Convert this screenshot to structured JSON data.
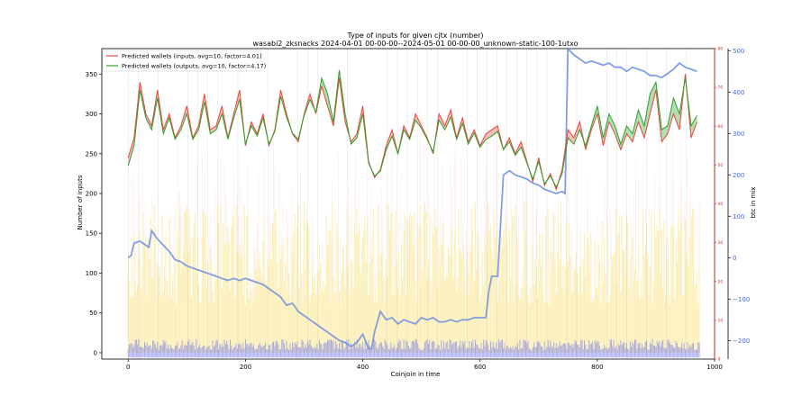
{
  "chart_data": {
    "type": "line",
    "title": "Type of inputs for given cjtx (number)",
    "subtitle": "wasabi2_zksnacks 2024-04-01 00-00-00--2024-05-01 00-00-00_unknown-static-100-1utxo",
    "xlabel": "Coinjoin in time",
    "ylabel": "Number of inputs",
    "y2label": "btc in mix",
    "xlim": [
      -45,
      1000
    ],
    "ylim": [
      -8,
      382
    ],
    "y2lim": [
      -245,
      505
    ],
    "y3lim": [
      0,
      80
    ],
    "xticks": [
      "0",
      "200",
      "400",
      "600",
      "800",
      "1000"
    ],
    "yticks": [
      "0",
      "50",
      "100",
      "150",
      "200",
      "250",
      "300",
      "350"
    ],
    "y2ticks": [
      "−200",
      "−100",
      "0",
      "100",
      "200",
      "300",
      "400",
      "500"
    ],
    "y3ticks": [
      "0",
      "10",
      "20",
      "30",
      "40",
      "50",
      "60",
      "70",
      "80"
    ],
    "legend_position": "upper left",
    "series": [
      {
        "name": "Predicted wallets (inputs, avg=10, factor=4.01)",
        "color": "#e8453c",
        "x": [
          0,
          10,
          20,
          30,
          40,
          50,
          60,
          70,
          80,
          90,
          100,
          110,
          120,
          130,
          140,
          150,
          160,
          170,
          180,
          190,
          200,
          210,
          220,
          230,
          240,
          250,
          260,
          270,
          280,
          290,
          300,
          310,
          320,
          330,
          340,
          350,
          360,
          370,
          380,
          390,
          400,
          410,
          420,
          430,
          440,
          450,
          460,
          470,
          480,
          490,
          500,
          510,
          520,
          530,
          540,
          550,
          560,
          570,
          580,
          590,
          600,
          610,
          620,
          630,
          640,
          650,
          660,
          670,
          680,
          690,
          700,
          710,
          720,
          730,
          740,
          750,
          760,
          770,
          780,
          790,
          800,
          810,
          820,
          830,
          840,
          850,
          860,
          870,
          880,
          890,
          900,
          910,
          920,
          930,
          940,
          950,
          960,
          970
        ],
        "values": [
          245,
          270,
          340,
          300,
          285,
          330,
          280,
          300,
          270,
          285,
          310,
          270,
          285,
          325,
          280,
          285,
          310,
          270,
          300,
          330,
          260,
          290,
          275,
          300,
          260,
          280,
          330,
          300,
          275,
          265,
          300,
          325,
          300,
          335,
          310,
          285,
          345,
          290,
          265,
          275,
          310,
          240,
          220,
          230,
          260,
          280,
          250,
          285,
          270,
          300,
          285,
          270,
          250,
          300,
          285,
          305,
          270,
          295,
          265,
          280,
          260,
          275,
          280,
          285,
          255,
          270,
          250,
          265,
          240,
          215,
          245,
          210,
          225,
          205,
          230,
          280,
          270,
          290,
          255,
          280,
          300,
          260,
          290,
          275,
          255,
          275,
          265,
          290,
          270,
          300,
          330,
          265,
          275,
          300,
          280,
          350,
          270,
          290
        ]
      },
      {
        "name": "Predicted wallets (outputs, avg=10, factor=4.17)",
        "color": "#2ca02c",
        "x": [
          0,
          10,
          20,
          30,
          40,
          50,
          60,
          70,
          80,
          90,
          100,
          110,
          120,
          130,
          140,
          150,
          160,
          170,
          180,
          190,
          200,
          210,
          220,
          230,
          240,
          250,
          260,
          270,
          280,
          290,
          300,
          310,
          320,
          330,
          340,
          350,
          360,
          370,
          380,
          390,
          400,
          410,
          420,
          430,
          440,
          450,
          460,
          470,
          480,
          490,
          500,
          510,
          520,
          530,
          540,
          550,
          560,
          570,
          580,
          590,
          600,
          610,
          620,
          630,
          640,
          650,
          660,
          670,
          680,
          690,
          700,
          710,
          720,
          730,
          740,
          750,
          760,
          770,
          780,
          790,
          800,
          810,
          820,
          830,
          840,
          850,
          860,
          870,
          880,
          890,
          900,
          910,
          920,
          930,
          940,
          950,
          960,
          970
        ],
        "values": [
          235,
          260,
          330,
          295,
          280,
          320,
          275,
          295,
          268,
          280,
          300,
          268,
          280,
          315,
          275,
          280,
          300,
          268,
          295,
          318,
          262,
          285,
          272,
          295,
          262,
          278,
          322,
          296,
          276,
          268,
          298,
          318,
          302,
          345,
          325,
          290,
          355,
          300,
          262,
          270,
          300,
          238,
          222,
          228,
          255,
          272,
          250,
          280,
          268,
          292,
          282,
          268,
          252,
          292,
          280,
          296,
          268,
          288,
          262,
          276,
          258,
          268,
          272,
          278,
          255,
          265,
          248,
          258,
          238,
          218,
          240,
          212,
          222,
          208,
          225,
          270,
          262,
          280,
          260,
          285,
          310,
          270,
          300,
          285,
          262,
          285,
          275,
          305,
          285,
          325,
          340,
          280,
          285,
          320,
          300,
          345,
          285,
          298
        ]
      },
      {
        "name": "btc in mix",
        "color": "#6c8ee0",
        "axis": "y2",
        "x": [
          0,
          5,
          10,
          20,
          30,
          35,
          40,
          50,
          60,
          70,
          80,
          90,
          100,
          110,
          120,
          130,
          140,
          150,
          160,
          170,
          180,
          190,
          200,
          210,
          220,
          230,
          240,
          250,
          260,
          270,
          280,
          290,
          300,
          310,
          320,
          330,
          340,
          350,
          360,
          370,
          380,
          390,
          400,
          410,
          415,
          420,
          430,
          440,
          450,
          460,
          470,
          480,
          490,
          500,
          510,
          520,
          530,
          540,
          550,
          560,
          570,
          580,
          590,
          600,
          610,
          615,
          620,
          625,
          630,
          640,
          650,
          660,
          670,
          680,
          690,
          700,
          710,
          720,
          730,
          740,
          745,
          750,
          760,
          770,
          780,
          790,
          800,
          810,
          820,
          830,
          840,
          850,
          860,
          870,
          880,
          890,
          900,
          910,
          920,
          930,
          940,
          950,
          960,
          970
        ],
        "values": [
          0,
          5,
          35,
          40,
          30,
          25,
          65,
          45,
          30,
          15,
          -5,
          -10,
          -20,
          -25,
          -30,
          -35,
          -40,
          -45,
          -50,
          -55,
          -50,
          -55,
          -50,
          -55,
          -60,
          -65,
          -75,
          -85,
          -95,
          -115,
          -110,
          -130,
          -140,
          -150,
          -160,
          -170,
          -180,
          -190,
          -200,
          -205,
          -215,
          -205,
          -185,
          -220,
          -220,
          -180,
          -130,
          -150,
          -145,
          -160,
          -150,
          -155,
          -160,
          -145,
          -150,
          -145,
          -155,
          -155,
          -150,
          -155,
          -150,
          -150,
          -145,
          -145,
          -145,
          -80,
          -45,
          -45,
          -45,
          200,
          210,
          200,
          195,
          190,
          180,
          175,
          165,
          160,
          155,
          160,
          155,
          505,
          490,
          480,
          470,
          475,
          470,
          465,
          470,
          460,
          460,
          450,
          460,
          455,
          450,
          440,
          440,
          435,
          445,
          455,
          470,
          460,
          455,
          450
        ]
      }
    ]
  }
}
